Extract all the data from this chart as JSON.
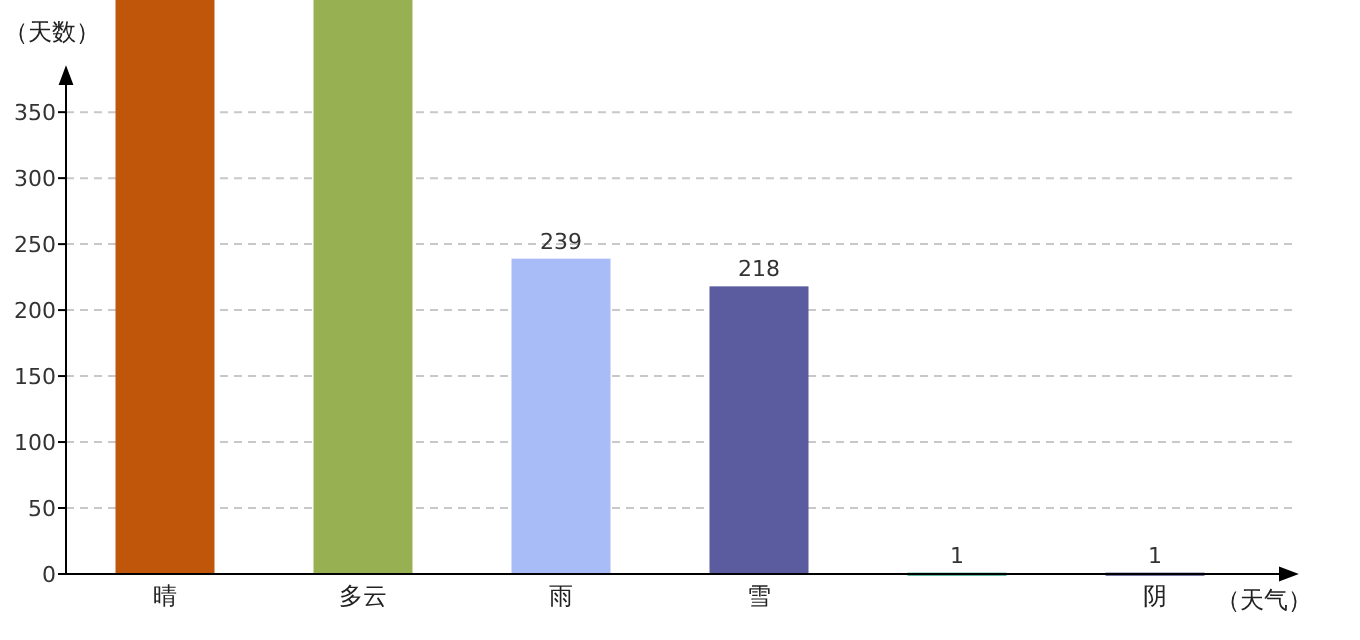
{
  "chart_data": {
    "type": "bar",
    "ylabel": "（天数）",
    "xlabel": "（天气）",
    "categories": [
      "晴",
      "多云",
      "雨",
      "雪",
      null,
      "阴"
    ],
    "values": [
      435,
      435,
      239,
      218,
      1,
      1
    ],
    "value_labels": [
      null,
      null,
      "239",
      "218",
      "1",
      "1"
    ],
    "colors": [
      "#c0560a",
      "#97b152",
      "#a8bcf8",
      "#5b5ba0",
      "#1a9a7a",
      "#3a3a7a"
    ],
    "ylim": [
      0,
      435
    ],
    "yticks": [
      0,
      50,
      100,
      150,
      200,
      250,
      300,
      350
    ],
    "grid": "y"
  }
}
